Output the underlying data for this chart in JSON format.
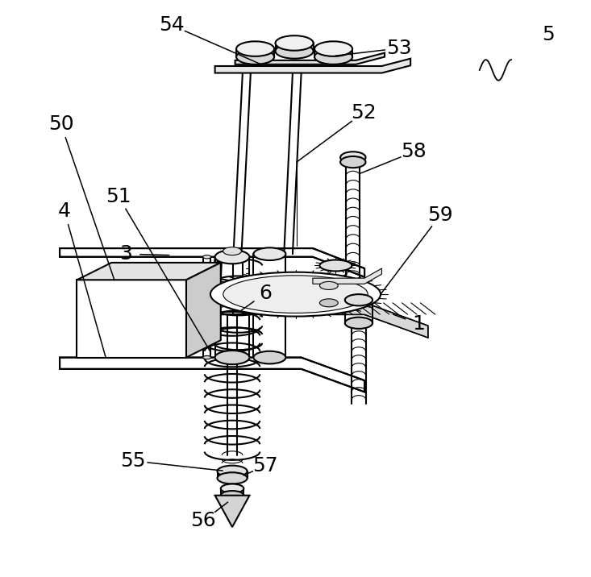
{
  "bg_color": "#ffffff",
  "line_color": "#000000",
  "line_width": 1.5,
  "thin_line": 0.8,
  "label_fontsize": 18,
  "figsize": [
    7.33,
    7.16
  ],
  "dpi": 100
}
